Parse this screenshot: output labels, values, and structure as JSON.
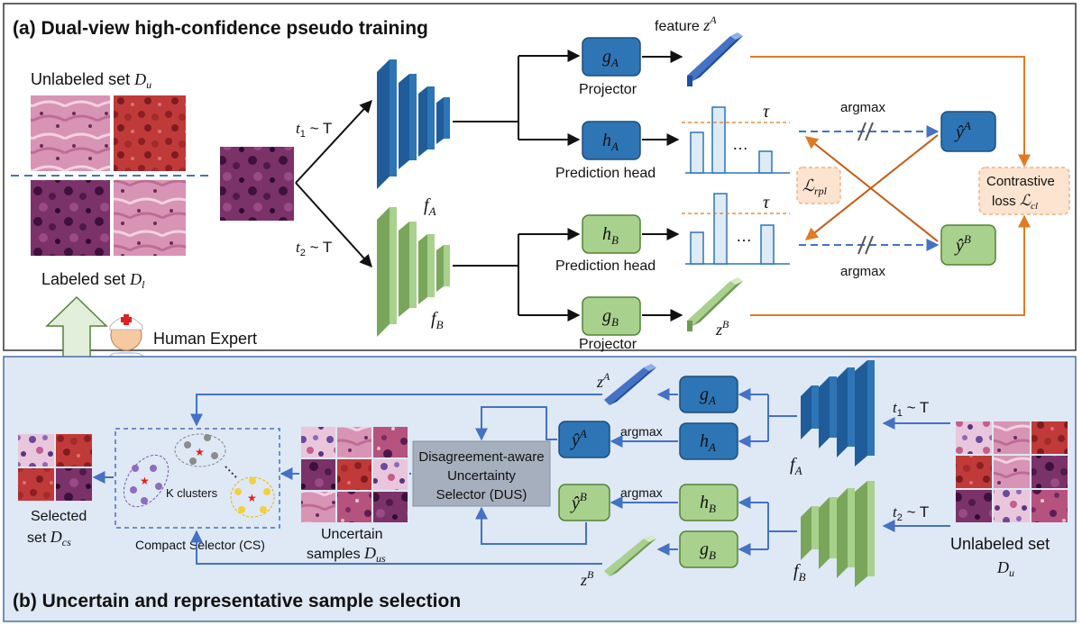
{
  "sections": {
    "a_title": "(a) Dual-view high-confidence pseudo training",
    "b_title": "(b) Uncertain and representative sample selection"
  },
  "top": {
    "unlabeled_prefix": "Unlabeled set ",
    "unlabeled_sym": "D",
    "unlabeled_sub": "u",
    "labeled_prefix": "Labeled set ",
    "labeled_sym": "D",
    "labeled_sub": "l",
    "aug1_t": "t",
    "aug1_sub": "1",
    "aug1_rest": " ~ T",
    "aug2_t": "t",
    "aug2_sub": "2",
    "aug2_rest": " ~ T",
    "fA": "f",
    "fA_sub": "A",
    "fB": "f",
    "fB_sub": "B",
    "gA": "g",
    "gA_sub": "A",
    "gB": "g",
    "gB_sub": "B",
    "hA": "h",
    "hA_sub": "A",
    "hB": "h",
    "hB_sub": "B",
    "projector_a": "Projector",
    "projector_b": "Projector",
    "pred_head_a": "Prediction head",
    "pred_head_b": "Prediction head",
    "feature_prefix": "feature ",
    "zA": "z",
    "zA_sup": "A",
    "zB": "z",
    "zB_sup": "B",
    "tau_top": "τ",
    "tau_bot": "τ",
    "dots_top": "…",
    "dots_bot": "…",
    "argmax_top": "argmax",
    "argmax_bot": "argmax",
    "rpl_L": "ℒ",
    "rpl_sub": "rpl",
    "yA": "ŷ",
    "yA_sup": "A",
    "yB": "ŷ",
    "yB_sup": "B",
    "contrastive_line1": "Contrastive",
    "contrastive_line2": "loss ",
    "cl_L": "ℒ",
    "cl_sub": "cl",
    "human_expert": "Human Expert"
  },
  "bottom": {
    "zA": "z",
    "zA_sup": "A",
    "zB": "z",
    "zB_sup": "B",
    "gA": "g",
    "gA_sub": "A",
    "gB": "g",
    "gB_sub": "B",
    "hA": "h",
    "hA_sub": "A",
    "hB": "h",
    "hB_sub": "B",
    "fA": "f",
    "fA_sub": "A",
    "fB": "f",
    "fB_sub": "B",
    "yA": "ŷ",
    "yA_sup": "A",
    "yB": "ŷ",
    "yB_sup": "B",
    "argmax_a": "argmax",
    "argmax_b": "argmax",
    "aug1_t": "t",
    "aug1_sub": "1",
    "aug1_rest": " ~ T",
    "aug2_t": "t",
    "aug2_sub": "2",
    "aug2_rest": " ~ T",
    "dus_line1": "Disagreement-aware",
    "dus_line2": "Uncertainty",
    "dus_line3": "Selector (DUS)",
    "k_clusters": "K clusters",
    "cs_label": "Compact  Selector (CS)",
    "uncertain_line1": "Uncertain",
    "uncertain_line2": "samples ",
    "uncertain_sym": "D",
    "uncertain_sub": "us",
    "selected_line1": "Selected",
    "selected_line2": "set ",
    "selected_sym": "D",
    "selected_sub": "cs",
    "unlabeled_line1": "Unlabeled set",
    "unlabeled_sym": "D",
    "unlabeled_sub": "u"
  },
  "colors": {
    "blue_box": "#2e75b6",
    "green_box": "#a9d18e",
    "orange": "#e07b24",
    "arrow_blue": "#4472c4",
    "panel_b_bg": "#dfe8f5",
    "dus_bg": "#a6afbd",
    "loss_bg": "#fde4d0"
  }
}
